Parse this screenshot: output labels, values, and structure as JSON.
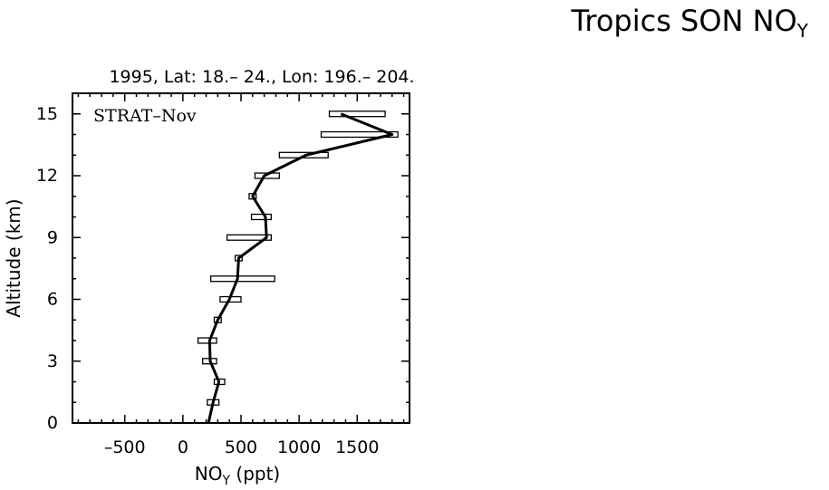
{
  "figure": {
    "title_main": "Tropics SON NO",
    "title_sub": "Y",
    "subtitle": "1995, Lat: 18.– 24., Lon: 196.– 204."
  },
  "chart_data": {
    "type": "line",
    "panel_label": "STRAT–Nov",
    "xlabel_main": "NO",
    "xlabel_sub": "Y",
    "xlabel_unit": " (ppt)",
    "ylabel": "Altitude (km)",
    "xlim": [
      -950,
      1950
    ],
    "ylim": [
      0,
      16
    ],
    "x_ticks": [
      -500,
      0,
      500,
      1000,
      1500
    ],
    "x_tick_labels": [
      "–500",
      "0",
      "500",
      "1000",
      "1500"
    ],
    "y_ticks": [
      0,
      3,
      6,
      9,
      12,
      15
    ],
    "y_tick_labels": [
      "0",
      "3",
      "6",
      "9",
      "12",
      "15"
    ],
    "profile": [
      {
        "alt": 0,
        "x": 220
      },
      {
        "alt": 1,
        "x": 260
      },
      {
        "alt": 2,
        "x": 310
      },
      {
        "alt": 3,
        "x": 235
      },
      {
        "alt": 4,
        "x": 230
      },
      {
        "alt": 5,
        "x": 300
      },
      {
        "alt": 6,
        "x": 400
      },
      {
        "alt": 7,
        "x": 470
      },
      {
        "alt": 8,
        "x": 480
      },
      {
        "alt": 9,
        "x": 720
      },
      {
        "alt": 10,
        "x": 710
      },
      {
        "alt": 11,
        "x": 600
      },
      {
        "alt": 12,
        "x": 700
      },
      {
        "alt": 13,
        "x": 1060
      },
      {
        "alt": 14,
        "x": 1800
      },
      {
        "alt": 15,
        "x": 1360
      }
    ],
    "boxes": [
      {
        "alt": 1,
        "lo": 210,
        "hi": 310
      },
      {
        "alt": 2,
        "lo": 270,
        "hi": 360
      },
      {
        "alt": 3,
        "lo": 170,
        "hi": 290
      },
      {
        "alt": 4,
        "lo": 130,
        "hi": 290
      },
      {
        "alt": 5,
        "lo": 270,
        "hi": 330
      },
      {
        "alt": 6,
        "lo": 320,
        "hi": 500
      },
      {
        "alt": 7,
        "lo": 240,
        "hi": 790
      },
      {
        "alt": 8,
        "lo": 450,
        "hi": 510
      },
      {
        "alt": 9,
        "lo": 380,
        "hi": 760
      },
      {
        "alt": 10,
        "lo": 590,
        "hi": 760
      },
      {
        "alt": 11,
        "lo": 570,
        "hi": 630
      },
      {
        "alt": 12,
        "lo": 620,
        "hi": 830
      },
      {
        "alt": 13,
        "lo": 830,
        "hi": 1250
      },
      {
        "alt": 14,
        "lo": 1190,
        "hi": 1850
      },
      {
        "alt": 15,
        "lo": 1260,
        "hi": 1740
      }
    ]
  }
}
